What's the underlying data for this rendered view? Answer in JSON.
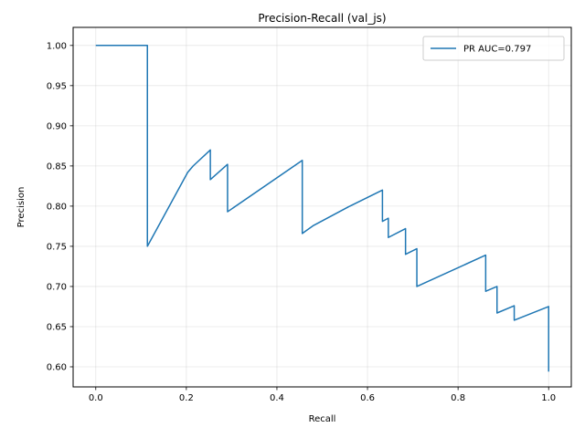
{
  "chart_data": {
    "type": "line",
    "title": "Precision-Recall (val_js)",
    "xlabel": "Recall",
    "ylabel": "Precision",
    "xlim": [
      -0.05,
      1.05
    ],
    "ylim": [
      0.575,
      1.0225
    ],
    "xticks": [
      0.0,
      0.2,
      0.4,
      0.6,
      0.8,
      1.0
    ],
    "xtick_labels": [
      "0.0",
      "0.2",
      "0.4",
      "0.6",
      "0.8",
      "1.0"
    ],
    "yticks": [
      0.6,
      0.65,
      0.7,
      0.75,
      0.8,
      0.85,
      0.9,
      0.95,
      1.0
    ],
    "ytick_labels": [
      "0.60",
      "0.65",
      "0.70",
      "0.75",
      "0.80",
      "0.85",
      "0.90",
      "0.95",
      "1.00"
    ],
    "grid": true,
    "legend_position": "top-right",
    "series": [
      {
        "name": "PR AUC=0.797",
        "color": "#1f77b4",
        "x": [
          0.0,
          0.114,
          0.114,
          0.203,
          0.215,
          0.253,
          0.253,
          0.291,
          0.291,
          0.456,
          0.456,
          0.481,
          0.561,
          0.633,
          0.633,
          0.646,
          0.646,
          0.684,
          0.684,
          0.709,
          0.709,
          0.861,
          0.861,
          0.886,
          0.886,
          0.924,
          0.924,
          1.0,
          1.0
        ],
        "y": [
          1.0,
          1.0,
          0.75,
          0.842,
          0.85,
          0.87,
          0.833,
          0.852,
          0.793,
          0.857,
          0.766,
          0.776,
          0.8,
          0.82,
          0.781,
          0.785,
          0.761,
          0.772,
          0.74,
          0.747,
          0.7,
          0.739,
          0.694,
          0.7,
          0.667,
          0.676,
          0.658,
          0.675,
          0.594
        ]
      }
    ]
  }
}
